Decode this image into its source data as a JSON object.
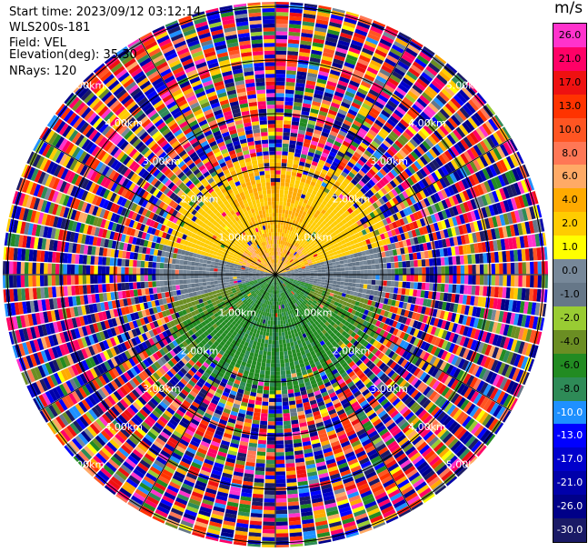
{
  "header": {
    "start_time": "Start time: 2023/09/12 03:12:14",
    "instrument": "WLS200s-181",
    "field": "Field: VEL",
    "elevation": "Elevation(deg): 35.30",
    "nrays": "NRays: 120"
  },
  "chart_data": {
    "type": "heatmap",
    "projection": "polar-ppi",
    "field": "VEL",
    "nrays": 120,
    "range_rings_km": [
      1.0,
      2.0,
      3.0,
      4.0,
      5.0
    ],
    "range_ring_labels": [
      "1.00km",
      "2.00km",
      "3.00km",
      "4.00km",
      "5.00km"
    ],
    "colorbar": {
      "unit": "m/s",
      "levels": [
        26.0,
        21.0,
        17.0,
        13.0,
        10.0,
        8.0,
        6.0,
        4.0,
        2.0,
        1.0,
        0.0,
        -1.0,
        -2.0,
        -4.0,
        -6.0,
        -8.0,
        -10.0,
        -13.0,
        -17.0,
        -21.0,
        -26.0,
        -30.0
      ],
      "labels": [
        "26.0",
        "21.0",
        "17.0",
        "13.0",
        "10.0",
        "8.0",
        "6.0",
        "4.0",
        "2.0",
        "1.0",
        "0.0",
        "-1.0",
        "-2.0",
        "-4.0",
        "-6.0",
        "-8.0",
        "-10.0",
        "-13.0",
        "-17.0",
        "-21.0",
        "-26.0",
        "-30.0"
      ],
      "colors": [
        "#ff33cc",
        "#ff0066",
        "#ee1111",
        "#ff3300",
        "#ff5522",
        "#ff7755",
        "#ffaa66",
        "#ffaa00",
        "#ffcc00",
        "#ffff00",
        "#778899",
        "#667788",
        "#99cc33",
        "#6b8e23",
        "#228b22",
        "#2e8b57",
        "#1e90ff",
        "#0000ff",
        "#0000cc",
        "#0000aa",
        "#000088",
        "#1a1a66"
      ]
    },
    "near_field": {
      "north_half_velocity_ms": [
        1.0,
        4.0
      ],
      "south_half_velocity_ms": [
        -6.0,
        -1.0
      ],
      "east_west_velocity_ms": [
        -1.0,
        1.0
      ],
      "clean_range_km": [
        0.0,
        2.2
      ]
    }
  }
}
